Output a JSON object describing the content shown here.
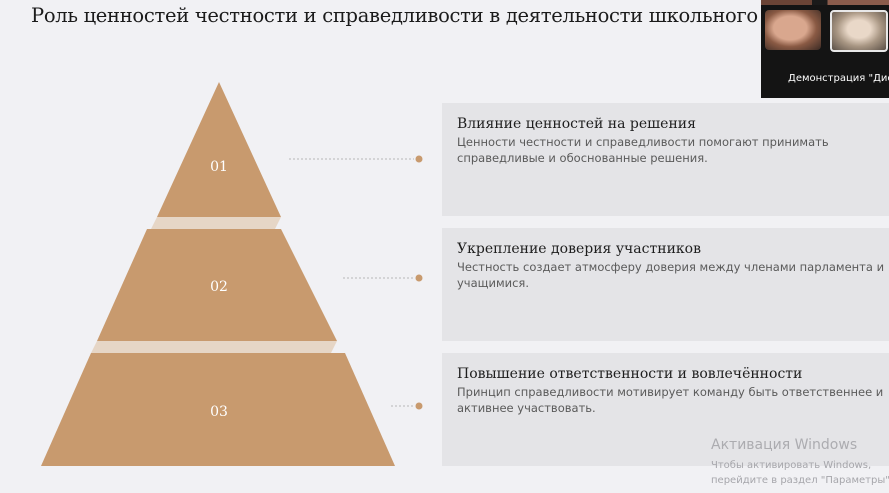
{
  "slide": {
    "title": "Роль ценностей честности и справедливости в деятельности школьного парламента"
  },
  "pyramid": {
    "tiers": [
      {
        "number": "01"
      },
      {
        "number": "02"
      },
      {
        "number": "03"
      }
    ],
    "colors": {
      "fill": "#c89a6e",
      "connector": "#e6d6c6",
      "dot": "#c89a6e"
    }
  },
  "cards": [
    {
      "title": "Влияние ценностей на решения",
      "text": "Ценности честности и справедливости помогают принимать справедливые и обоснованные решения."
    },
    {
      "title": "Укрепление доверия участников",
      "text": "Честность создает атмосферу доверия между членами парламента и учащимися."
    },
    {
      "title": "Повышение ответственности и вовлечённости",
      "text": "Принцип справедливости мотивирует команду быть ответственнее и активнее участвовать."
    }
  ],
  "video_panel": {
    "label": "Демонстрация \"Дисплей\""
  },
  "windows_activation": {
    "title": "Активация Windows",
    "text": "Чтобы активировать Windows, перейдите в раздел \"Параметры\"."
  }
}
